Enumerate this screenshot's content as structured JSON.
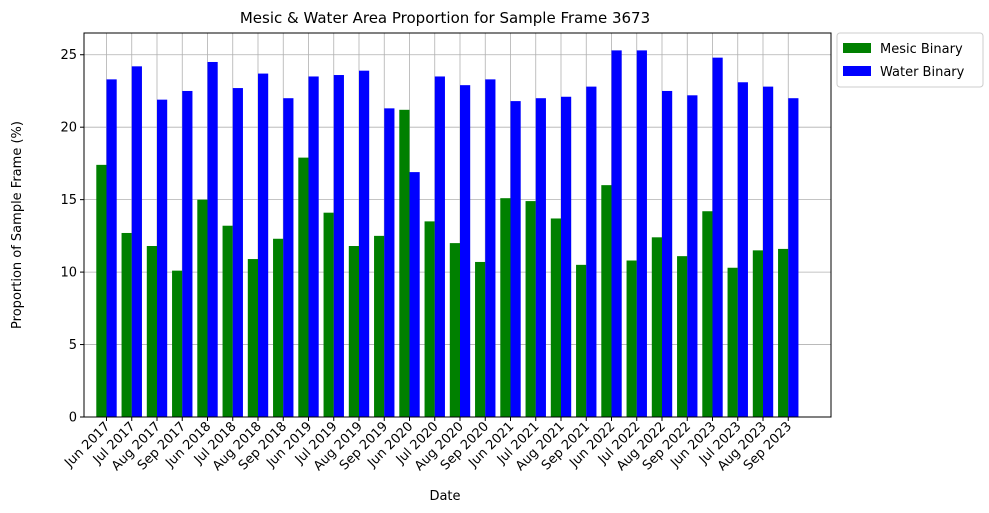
{
  "chart_data": {
    "type": "bar",
    "title": "Mesic & Water Area Proportion for Sample Frame 3673",
    "xlabel": "Date",
    "ylabel": "Proportion of Sample Frame (%)",
    "ylim": [
      0,
      26.5
    ],
    "yticks": [
      0,
      5,
      10,
      15,
      20,
      25
    ],
    "grid": true,
    "legend_position": "outside-top-right",
    "categories": [
      "Jun 2017",
      "Jul 2017",
      "Aug 2017",
      "Sep 2017",
      "Jun 2018",
      "Jul 2018",
      "Aug 2018",
      "Sep 2018",
      "Jun 2019",
      "Jul 2019",
      "Aug 2019",
      "Sep 2019",
      "Jun 2020",
      "Jul 2020",
      "Aug 2020",
      "Sep 2020",
      "Jun 2021",
      "Jul 2021",
      "Aug 2021",
      "Sep 2021",
      "Jun 2022",
      "Jul 2022",
      "Aug 2022",
      "Sep 2022",
      "Jun 2023",
      "Jul 2023",
      "Aug 2023",
      "Sep 2023"
    ],
    "series": [
      {
        "name": "Mesic Binary",
        "color": "#008000",
        "values": [
          17.4,
          12.7,
          11.8,
          10.1,
          15.0,
          13.2,
          10.9,
          12.3,
          17.9,
          14.1,
          11.8,
          12.5,
          21.2,
          13.5,
          12.0,
          10.7,
          15.1,
          14.9,
          13.7,
          10.5,
          16.0,
          10.8,
          12.4,
          11.1,
          14.2,
          10.3,
          11.5,
          11.6
        ]
      },
      {
        "name": "Water Binary",
        "color": "#0000ff",
        "values": [
          23.3,
          24.2,
          21.9,
          22.5,
          24.5,
          22.7,
          23.7,
          22.0,
          23.5,
          23.6,
          23.9,
          21.3,
          16.9,
          23.5,
          22.9,
          23.3,
          21.8,
          22.0,
          22.1,
          22.8,
          25.3,
          25.3,
          22.5,
          22.2,
          24.8,
          23.1,
          22.8,
          22.0
        ]
      }
    ]
  }
}
